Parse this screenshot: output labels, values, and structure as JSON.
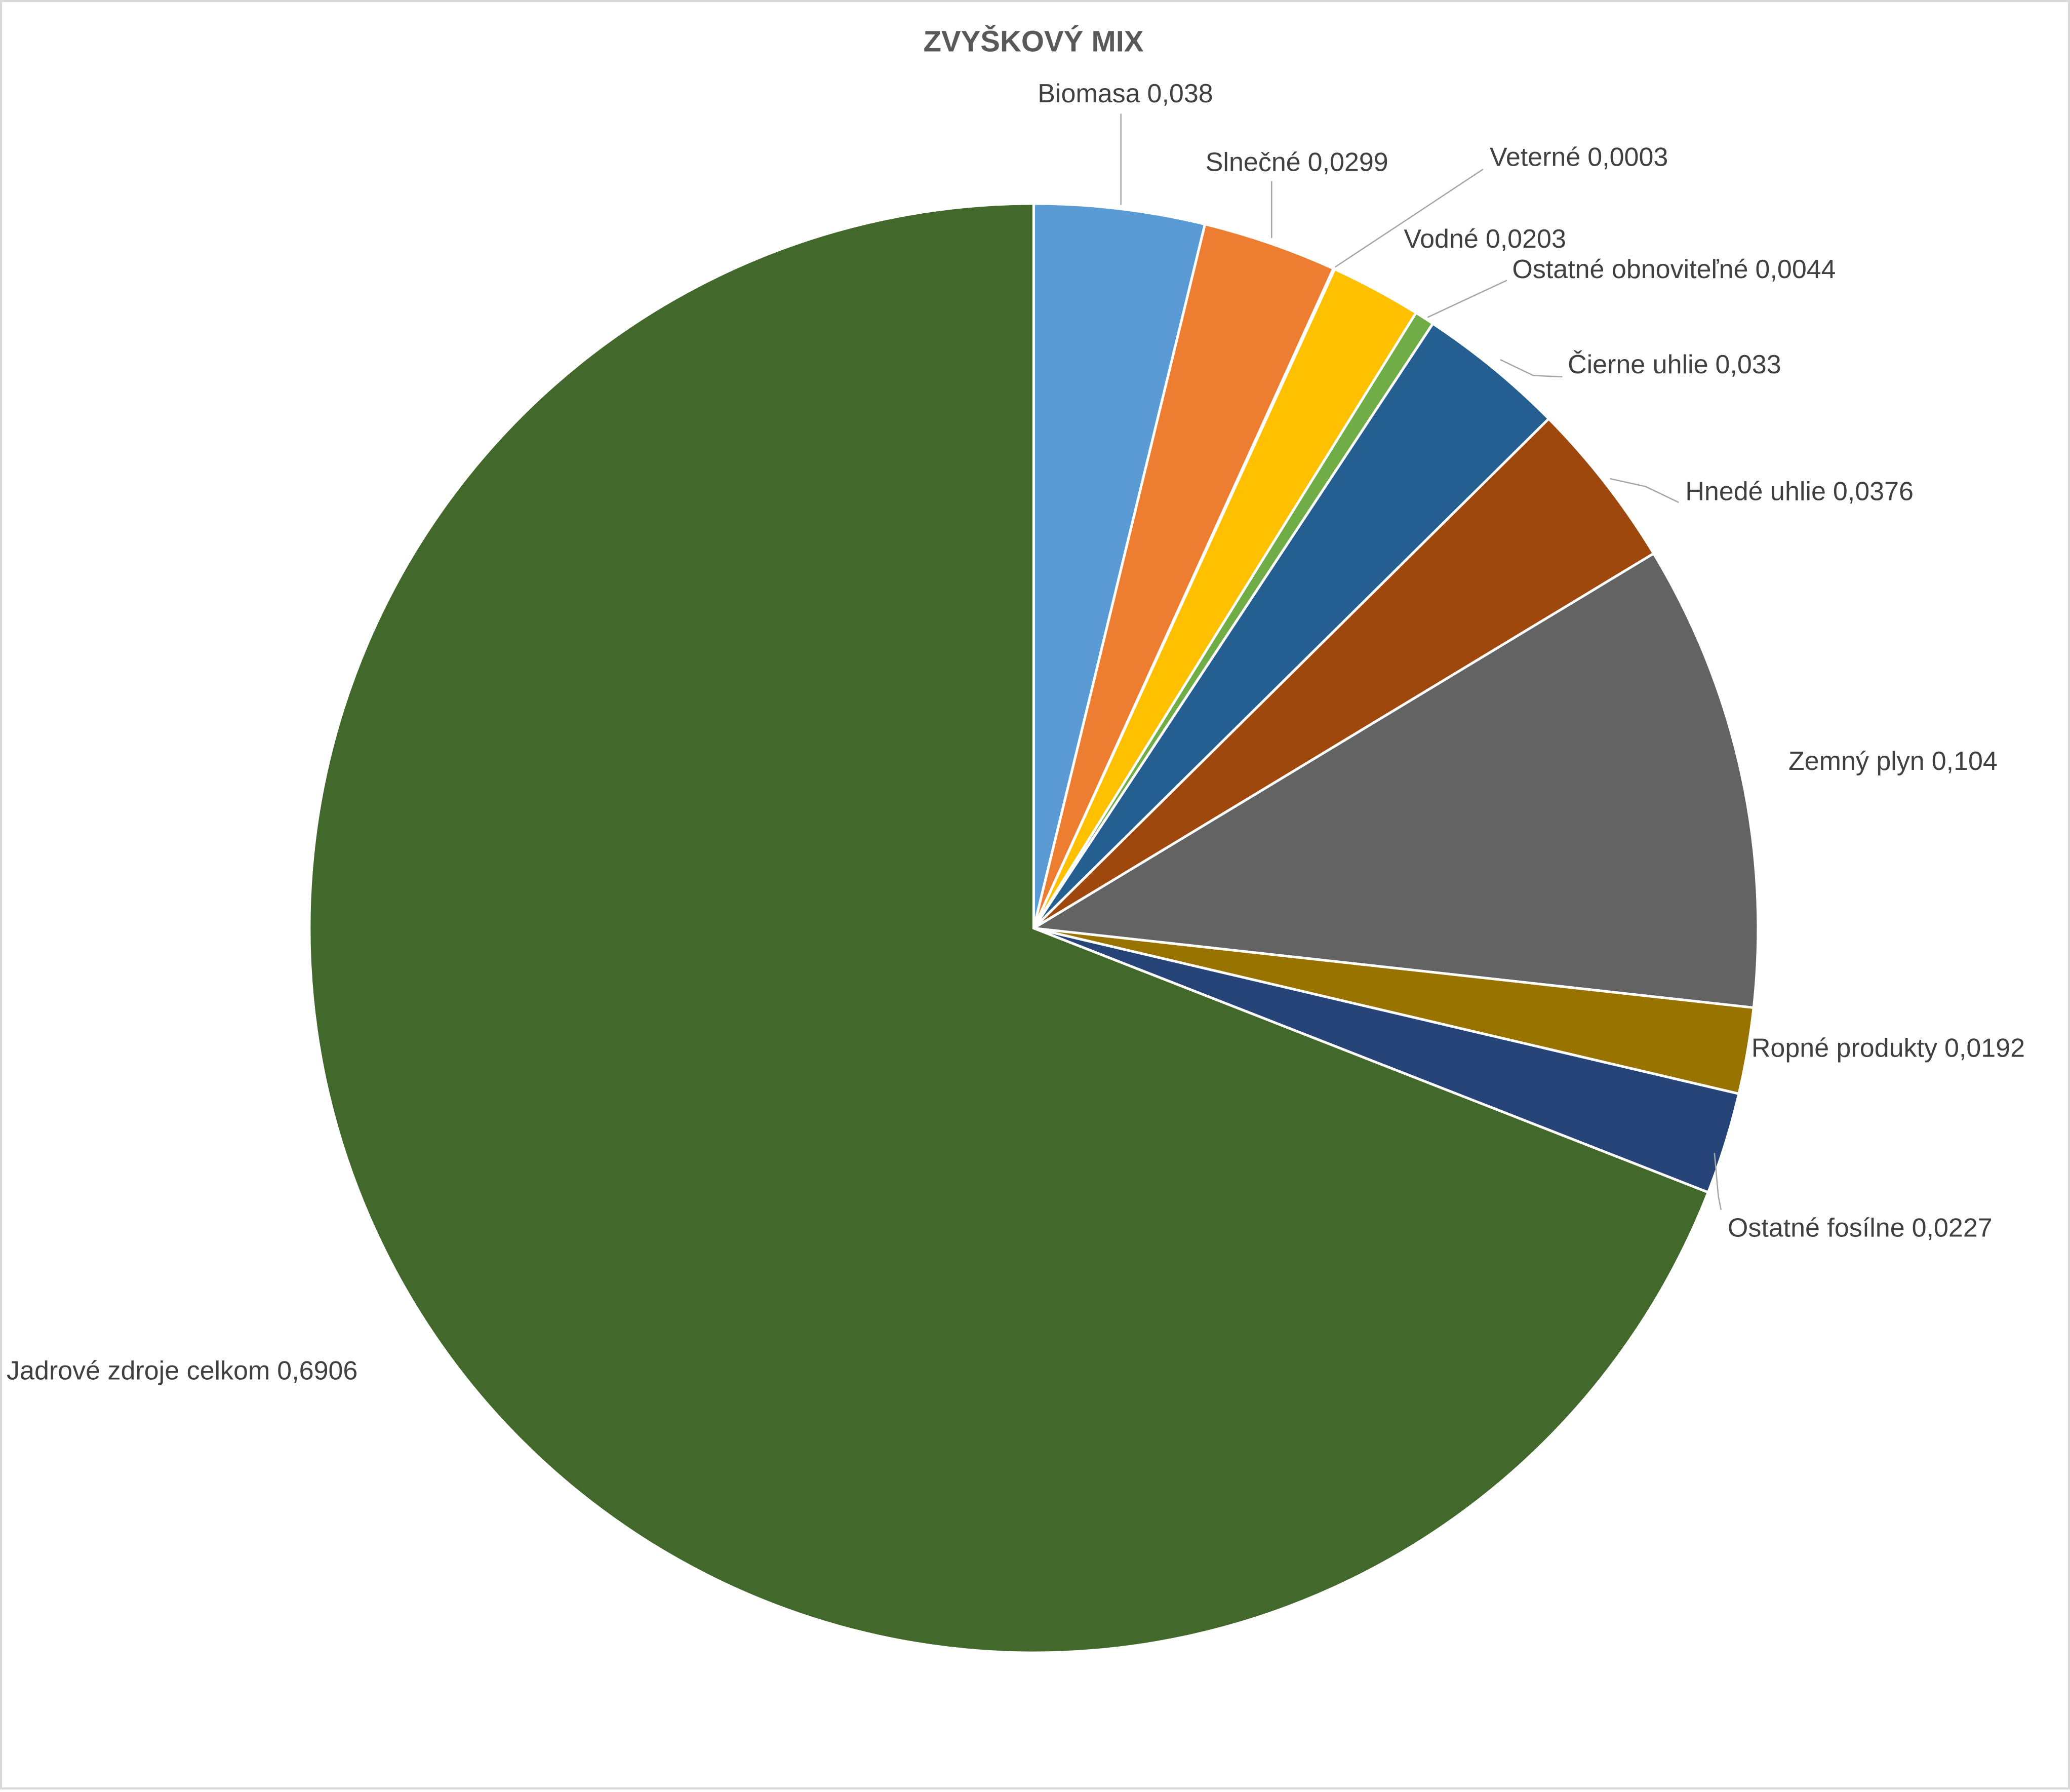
{
  "chart_data": {
    "type": "pie",
    "title": "ZVYŠKOVÝ MIX",
    "categories": [
      "Biomasa",
      "Slnečné",
      "Veterné",
      "Vodné",
      "Ostatné obnoviteľné",
      "Čierne uhlie",
      "Hnedé uhlie",
      "Zemný plyn",
      "Ropné produkty",
      "Ostatné fosílne",
      "Jadrové zdroje celkom"
    ],
    "values": [
      0.038,
      0.0299,
      0.0003,
      0.0203,
      0.0044,
      0.033,
      0.0376,
      0.104,
      0.0192,
      0.0227,
      0.6906
    ],
    "value_labels": [
      "0,038",
      "0,0299",
      "0,0003",
      "0,0203",
      "0,0044",
      "0,033",
      "0,0376",
      "0,104",
      "0,0192",
      "0,0227",
      "0,6906"
    ],
    "colors": [
      "#5b9bd5",
      "#ed7d31",
      "#a5a5a5",
      "#ffc000",
      "#70ad47",
      "#255e91",
      "#9e480e",
      "#636363",
      "#997300",
      "#264478",
      "#43682b"
    ]
  }
}
